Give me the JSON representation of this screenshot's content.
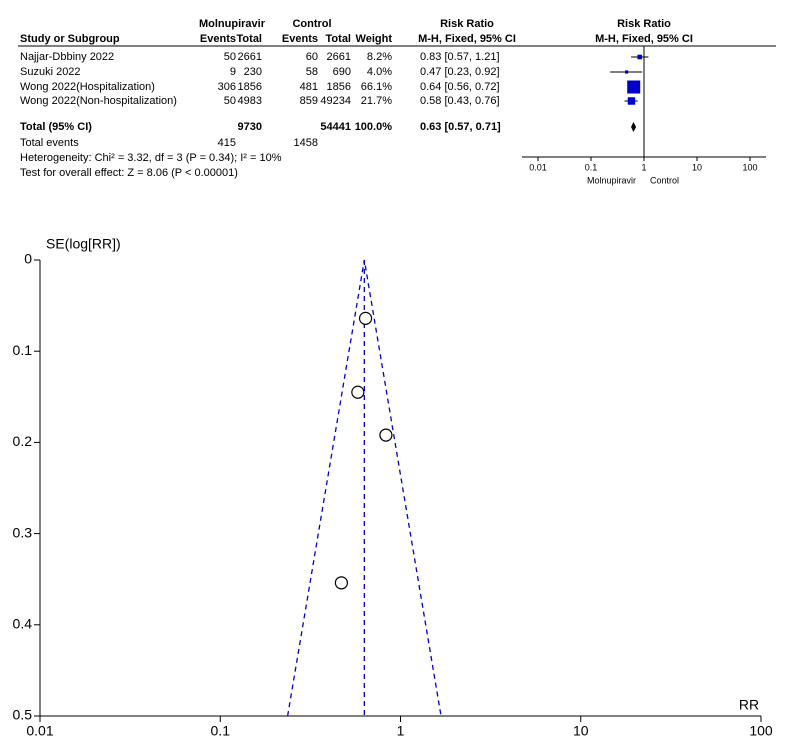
{
  "table": {
    "header": {
      "group1": "Molnupiravir",
      "group2": "Control",
      "rr_title": "Risk Ratio",
      "rr_method": "M-H, Fixed, 95% CI",
      "plot_title": "Risk Ratio",
      "plot_method": "M-H, Fixed, 95% CI"
    },
    "columns": [
      "Study or Subgroup",
      "Events",
      "Total",
      "Events",
      "Total",
      "Weight"
    ],
    "rows": [
      [
        "Najjar-Dbbiny 2022",
        "50",
        "2661",
        "60",
        "2661",
        "8.2%",
        "0.83 [0.57, 1.21]"
      ],
      [
        "Suzuki 2022",
        "9",
        "230",
        "58",
        "690",
        "4.0%",
        "0.47 [0.23, 0.92]"
      ],
      [
        "Wong 2022(Hospitalization)",
        "306",
        "1856",
        "481",
        "1856",
        "66.1%",
        "0.64 [0.56, 0.72]"
      ],
      [
        "Wong 2022(Non-hospitalization)",
        "50",
        "4983",
        "859",
        "49234",
        "21.7%",
        "0.58 [0.43, 0.76]"
      ]
    ],
    "total": [
      "Total (95% CI)",
      "9730",
      "54441",
      "100.0%",
      "0.63 [0.57, 0.71]"
    ],
    "total_events": [
      "Total events",
      "415",
      "1458"
    ],
    "notes": [
      "Heterogeneity: Chi² = 3.32, df = 3 (P = 0.34); I² = 10%",
      "Test for overall effect: Z = 8.06 (P < 0.00001)"
    ]
  },
  "chart_data": [
    {
      "type": "forest",
      "log_scale": true,
      "xlim": [
        0.01,
        100
      ],
      "xticks": [
        0.01,
        0.1,
        1,
        10,
        100
      ],
      "favours": [
        "Molnupiravir",
        "Control"
      ],
      "color": "#0000cc",
      "estimates": [
        0.83,
        0.47,
        0.64,
        0.58
      ],
      "lower": [
        0.57,
        0.23,
        0.56,
        0.43
      ],
      "upper": [
        1.21,
        0.92,
        0.72,
        0.76
      ],
      "weights": [
        8.2,
        4.0,
        66.1,
        21.7
      ],
      "total": {
        "estimate": 0.63,
        "lower": 0.57,
        "upper": 0.71
      }
    },
    {
      "type": "funnel",
      "log_scale": true,
      "y_label": "SE(log[RR])",
      "x_label": "RR",
      "line_color": "#0000cc",
      "x": [
        0.83,
        0.47,
        0.64,
        0.58
      ],
      "values": [
        0.192,
        0.354,
        0.064,
        0.145
      ],
      "xlim": [
        0.01,
        100
      ],
      "ylim": [
        0,
        0.5
      ],
      "xticks": [
        0.01,
        0.1,
        1,
        10,
        100
      ],
      "yticks": [
        0,
        0.1,
        0.2,
        0.3,
        0.4,
        0.5
      ]
    }
  ]
}
